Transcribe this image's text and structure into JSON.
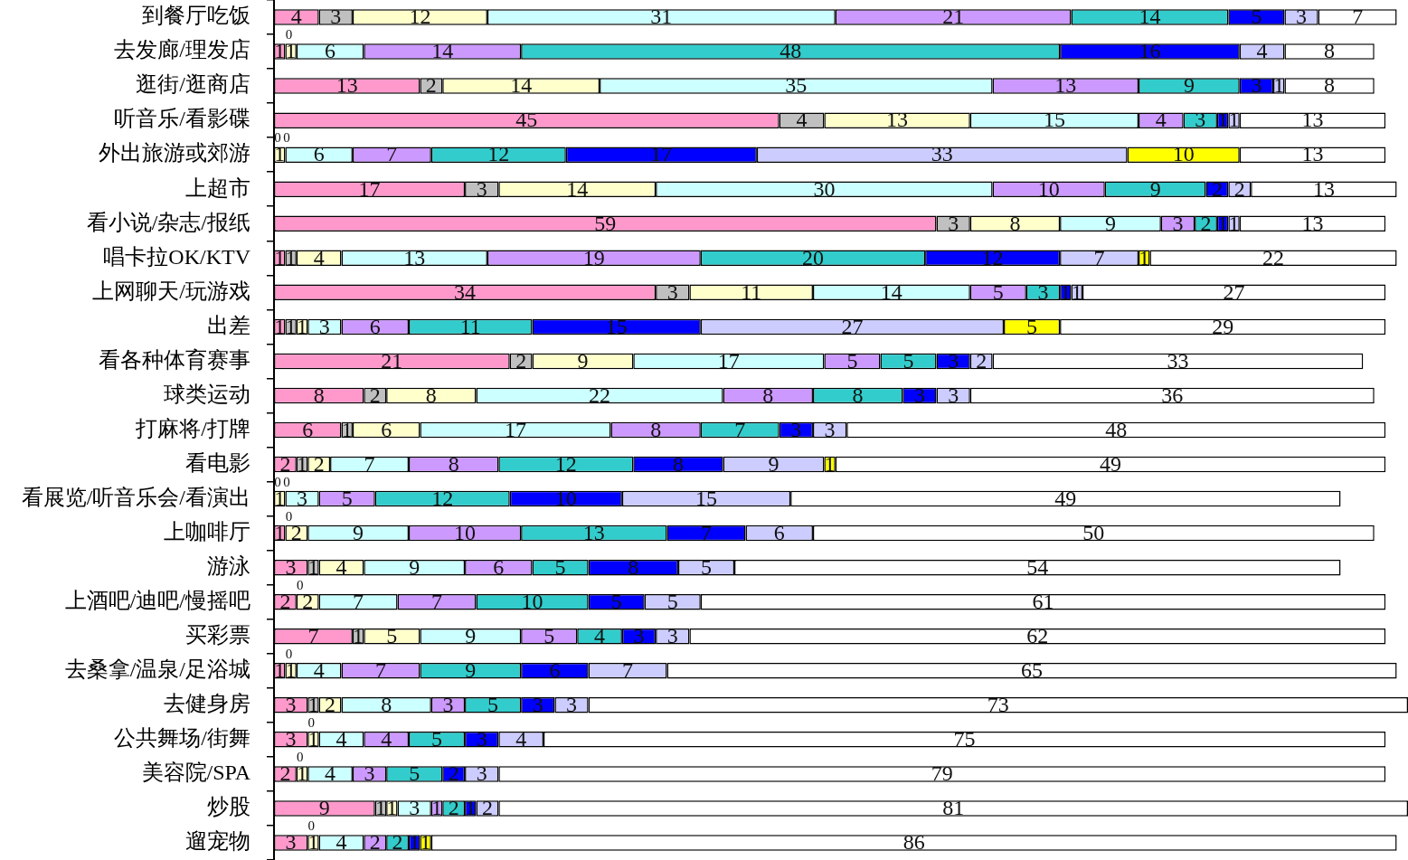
{
  "chart_data": {
    "type": "bar",
    "orientation": "horizontal",
    "stacked": true,
    "data_labels": true,
    "tick_labels": "y",
    "xlim": [
      0,
      101
    ],
    "categories": [
      "到餐厅吃饭",
      "去发廊/理发店",
      "逛街/逛商店",
      "听音乐/看影碟",
      "外出旅游或郊游",
      "上超市",
      "看小说/杂志/报纸",
      "唱卡拉OK/KTV",
      "上网聊天/玩游戏",
      "出差",
      "看各种体育赛事",
      "球类运动",
      "打麻将/打牌",
      "看电影",
      "看展览/听音乐会/看演出",
      "上咖啡厅",
      "游泳",
      "上酒吧/迪吧/慢摇吧",
      "买彩票",
      "去桑拿/温泉/足浴城",
      "去健身房",
      "公共舞场/街舞",
      "美容院/SPA",
      "炒股",
      "遛宠物"
    ],
    "series": [
      {
        "color": "#ff99cc",
        "values": [
          4,
          1,
          13,
          45,
          0,
          17,
          59,
          1,
          34,
          1,
          21,
          8,
          6,
          2,
          0,
          1,
          3,
          2,
          7,
          1,
          3,
          3,
          2,
          9,
          3
        ],
        "value_labels": [
          "4",
          "1",
          "13",
          "45",
          null,
          "17",
          "59",
          "1",
          "34",
          "1",
          "21",
          "8",
          "6",
          "2",
          null,
          "1",
          "3",
          "2",
          "7",
          "1",
          "3",
          "3",
          "2",
          "9",
          "3"
        ]
      },
      {
        "color": "#c0c0c0",
        "values": [
          3,
          0,
          2,
          4,
          0,
          3,
          3,
          1,
          3,
          1,
          2,
          2,
          1,
          1,
          0,
          0,
          1,
          0,
          1,
          0,
          1,
          0,
          0,
          1,
          0
        ],
        "value_labels": [
          "3",
          null,
          "2",
          "4",
          null,
          "3",
          "3",
          "1",
          "3",
          "1",
          "2",
          "2",
          "1",
          "1",
          null,
          null,
          "1",
          null,
          "1",
          null,
          "1",
          null,
          null,
          "1",
          null
        ]
      },
      {
        "color": "#ffffcc",
        "values": [
          12,
          1,
          14,
          13,
          1,
          14,
          8,
          4,
          11,
          1,
          9,
          8,
          6,
          2,
          1,
          2,
          4,
          2,
          5,
          1,
          2,
          1,
          1,
          1,
          1
        ]
      },
      {
        "color": "#ccffff",
        "values": [
          31,
          6,
          35,
          15,
          6,
          30,
          9,
          13,
          14,
          3,
          17,
          22,
          17,
          7,
          3,
          9,
          9,
          7,
          9,
          4,
          8,
          4,
          4,
          3,
          4
        ]
      },
      {
        "color": "#cc99ff",
        "values": [
          21,
          14,
          13,
          4,
          7,
          10,
          3,
          19,
          5,
          6,
          5,
          8,
          8,
          8,
          5,
          10,
          6,
          7,
          5,
          7,
          3,
          4,
          3,
          1,
          2
        ]
      },
      {
        "color": "#33cccc",
        "values": [
          14,
          48,
          9,
          3,
          12,
          9,
          2,
          20,
          3,
          11,
          5,
          8,
          7,
          12,
          12,
          13,
          5,
          10,
          4,
          9,
          5,
          5,
          5,
          2,
          2
        ]
      },
      {
        "color": "#0000ff",
        "values": [
          5,
          16,
          3,
          1,
          17,
          2,
          1,
          12,
          1,
          15,
          3,
          3,
          3,
          8,
          10,
          7,
          8,
          5,
          3,
          6,
          3,
          3,
          2,
          1,
          1
        ]
      },
      {
        "color": "#ccccff",
        "values": [
          3,
          4,
          1,
          1,
          33,
          2,
          1,
          7,
          1,
          27,
          2,
          3,
          3,
          9,
          15,
          6,
          5,
          5,
          3,
          7,
          3,
          4,
          3,
          2,
          null
        ]
      },
      {
        "color": "#ffff00",
        "values": [
          null,
          null,
          null,
          null,
          10,
          null,
          null,
          1,
          null,
          5,
          null,
          null,
          null,
          1,
          null,
          null,
          null,
          null,
          null,
          null,
          null,
          null,
          null,
          null,
          1
        ]
      },
      {
        "color": "#ffffff",
        "values": [
          7,
          8,
          8,
          13,
          13,
          13,
          13,
          22,
          27,
          29,
          33,
          36,
          48,
          49,
          49,
          50,
          54,
          61,
          62,
          65,
          73,
          75,
          79,
          81,
          86
        ]
      }
    ],
    "annotations": [
      {
        "text": "0",
        "x": 1,
        "y": "去发廊/理发店"
      },
      {
        "text": "0",
        "x": 0,
        "y": "外出旅游或郊游"
      },
      {
        "text": "0",
        "x": 0,
        "y": "外出旅游或郊游"
      },
      {
        "text": "0",
        "x": 0,
        "y": "看展览/听音乐会/看演出"
      },
      {
        "text": "0",
        "x": 0,
        "y": "看展览/听音乐会/看演出"
      },
      {
        "text": "0",
        "x": 1,
        "y": "上咖啡厅"
      },
      {
        "text": "0",
        "x": 2,
        "y": "上酒吧/迪吧/慢摇吧"
      },
      {
        "text": "0",
        "x": 1,
        "y": "去桑拿/温泉/足浴城"
      },
      {
        "text": "0",
        "x": 3,
        "y": "公共舞场/街舞"
      },
      {
        "text": "0",
        "x": 2,
        "y": "美容院/SPA"
      },
      {
        "text": "0",
        "x": 3,
        "y": "遛宠物"
      }
    ]
  }
}
